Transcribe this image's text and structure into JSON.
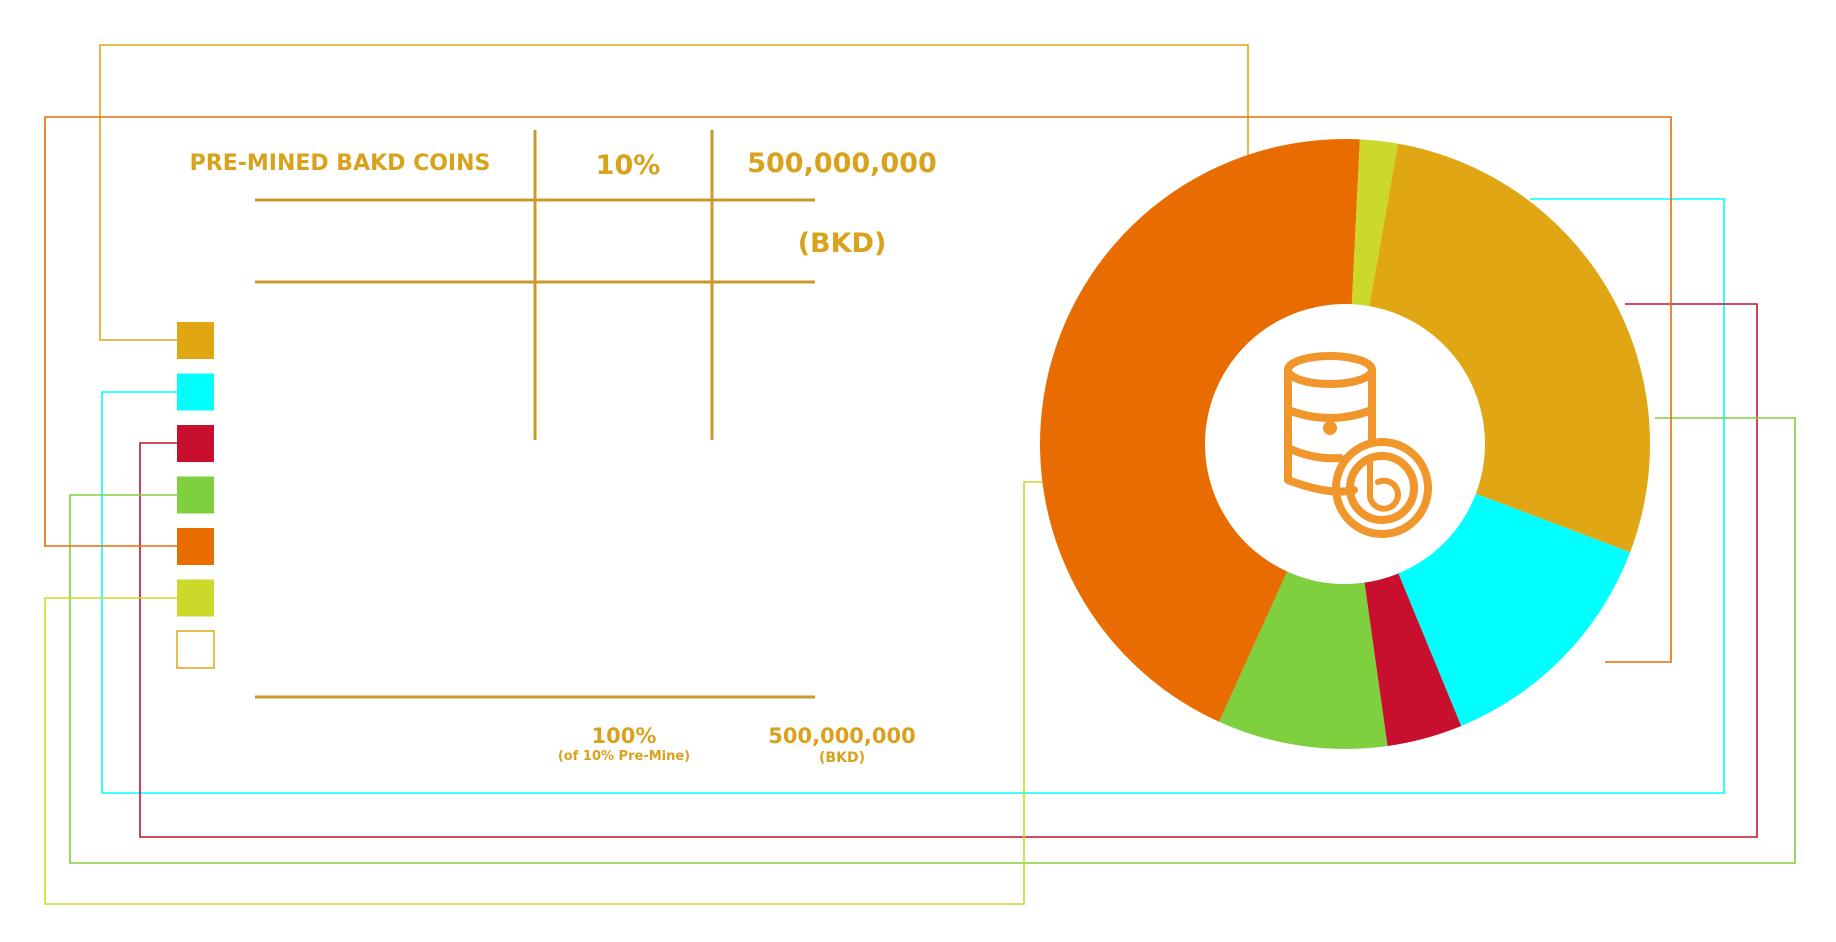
{
  "table": {
    "header_label": "PRE-MINED BAKD COINS",
    "header_percent": "10%",
    "header_amount": "500,000,000",
    "header_unit": "(BKD)",
    "total_percent": "100%",
    "total_percent_note": "(of 10% Pre-Mine)",
    "total_amount": "500,000,000",
    "total_unit": "(BKD)"
  },
  "colors": {
    "text": "#d9a21c",
    "grid": "#c89a2a",
    "center_icon": "#f0962a"
  },
  "chart_data": {
    "type": "pie",
    "donut": true,
    "center_icon": "coin-stack-icon",
    "legend_placement": "left",
    "slices": [
      {
        "color": "#e0a614",
        "percent": 28
      },
      {
        "color": "#00ffff",
        "percent": 13
      },
      {
        "color": "#c8102e",
        "percent": 4
      },
      {
        "color": "#7ed03e",
        "percent": 9
      },
      {
        "color": "#e96c00",
        "percent": 44
      },
      {
        "color": "#ccd92a",
        "percent": 2
      }
    ],
    "legend_swatches": [
      "#e0a614",
      "#00ffff",
      "#c8102e",
      "#7ed03e",
      "#e96c00",
      "#ccd92a",
      "none"
    ]
  }
}
